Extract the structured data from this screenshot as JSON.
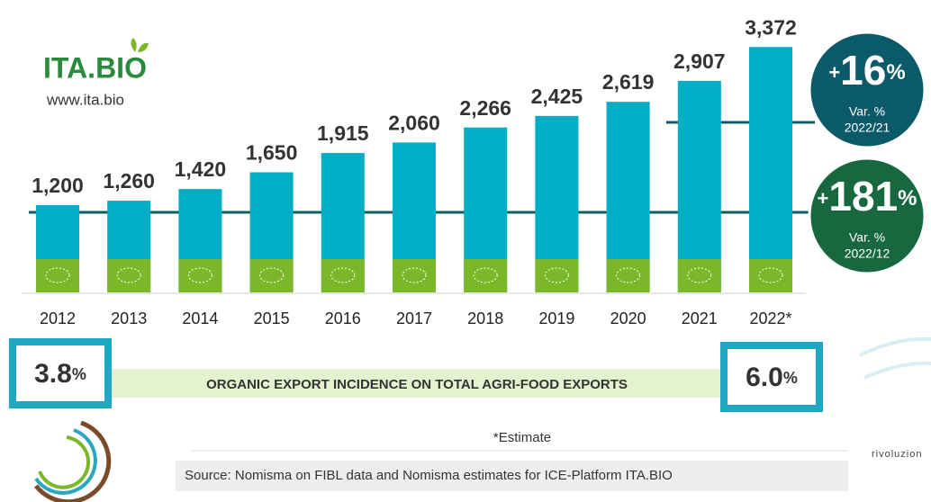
{
  "chart_data": {
    "type": "bar",
    "categories": [
      "2012",
      "2013",
      "2014",
      "2015",
      "2016",
      "2017",
      "2018",
      "2019",
      "2020",
      "2021",
      "2022*"
    ],
    "values": [
      1200,
      1260,
      1420,
      1650,
      1915,
      2060,
      2266,
      2425,
      2619,
      2907,
      3372
    ],
    "value_labels": [
      "1,200",
      "1,260",
      "1,420",
      "1,650",
      "1,915",
      "2,060",
      "2,266",
      "2,425",
      "2,619",
      "2,907",
      "3,372"
    ],
    "color": "#00afc6",
    "ylim": [
      0,
      3400
    ],
    "logo": "ITA.BIO",
    "website": "www.ita.bio",
    "badges": [
      {
        "prefix": "+",
        "number": "16",
        "suffix": "%",
        "label": "Var. %",
        "period": "2022/21",
        "color": "#0b5a69"
      },
      {
        "prefix": "+",
        "number": "181",
        "suffix": "%",
        "label": "Var. %",
        "period": "2022/12",
        "color": "#17683f"
      }
    ],
    "incidence": {
      "title": "ORGANIC EXPORT INCIDENCE ON TOTAL AGRI-FOOD EXPORTS",
      "start": {
        "number": "3.8",
        "suffix": "%"
      },
      "end": {
        "number": "6.0",
        "suffix": "%"
      }
    },
    "note": "*Estimate",
    "source": "Source: Nomisma on FIBL data and Nomisma estimates for ICE-Platform ITA.BIO",
    "corner_text": "rivoluzion"
  }
}
